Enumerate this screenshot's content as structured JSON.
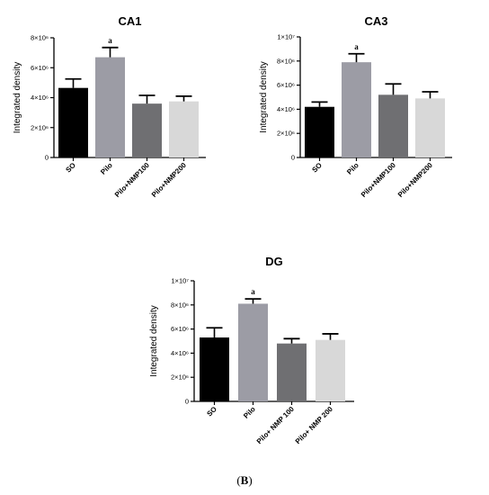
{
  "figure_label": {
    "open": "(",
    "letter": "B",
    "close": ")"
  },
  "chart_data": [
    {
      "type": "bar",
      "title": "CA1",
      "ylabel": "Integrated density",
      "ylim": [
        0,
        8000000
      ],
      "y_ticks": [
        0,
        2000000,
        4000000,
        6000000,
        8000000
      ],
      "y_tick_labels": [
        "0",
        "2×10⁶",
        "4×10⁶",
        "6×10⁶",
        "8×10⁶"
      ],
      "categories": [
        "SO",
        "Pilo",
        "Pilo+NMP100",
        "Pilo+NMP200"
      ],
      "values": [
        4650000,
        6700000,
        3600000,
        3750000
      ],
      "errors": [
        600000,
        650000,
        550000,
        350000
      ],
      "colors": [
        "#000000",
        "#9c9ca5",
        "#6f6f72",
        "#d8d8d8"
      ],
      "annotations": [
        "",
        "a",
        "",
        ""
      ],
      "grid": false
    },
    {
      "type": "bar",
      "title": "CA3",
      "ylabel": "Integrated density",
      "ylim": [
        0,
        10000000
      ],
      "y_ticks": [
        0,
        2000000,
        4000000,
        6000000,
        8000000,
        10000000
      ],
      "y_tick_labels": [
        "0",
        "2×10⁶",
        "4×10⁶",
        "6×10⁶",
        "8×10⁶",
        "1×10⁷"
      ],
      "categories": [
        "SO",
        "Pilo",
        "Pilo+NMP100",
        "Pilo+NMP200"
      ],
      "values": [
        4200000,
        7900000,
        5200000,
        4900000
      ],
      "errors": [
        400000,
        700000,
        900000,
        550000
      ],
      "colors": [
        "#000000",
        "#9c9ca5",
        "#6f6f72",
        "#d8d8d8"
      ],
      "annotations": [
        "",
        "a",
        "",
        ""
      ],
      "grid": false
    },
    {
      "type": "bar",
      "title": "DG",
      "ylabel": "Integrated density",
      "ylim": [
        0,
        10000000
      ],
      "y_ticks": [
        0,
        2000000,
        4000000,
        6000000,
        8000000,
        10000000
      ],
      "y_tick_labels": [
        "0",
        "2×10⁶",
        "4×10⁶",
        "6×10⁶",
        "8×10⁶",
        "1×10⁷"
      ],
      "categories": [
        "SO",
        "Pilo",
        "Pilo+ NMP 100",
        "Pilo+ NMP 200"
      ],
      "values": [
        5300000,
        8100000,
        4800000,
        5100000
      ],
      "errors": [
        800000,
        400000,
        400000,
        500000
      ],
      "colors": [
        "#000000",
        "#9c9ca5",
        "#6f6f72",
        "#d8d8d8"
      ],
      "annotations": [
        "",
        "a",
        "",
        ""
      ],
      "grid": false
    }
  ]
}
